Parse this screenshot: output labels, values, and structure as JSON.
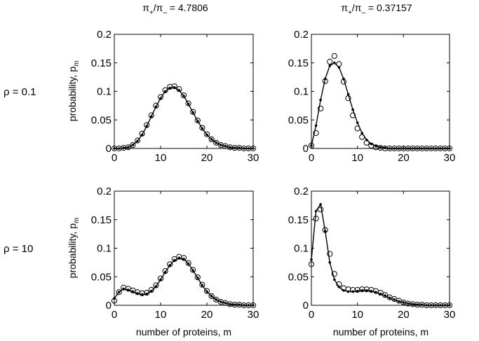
{
  "figure": {
    "column_titles": [
      {
        "main": "π",
        "sub1": "+",
        "mid": "/π",
        "sub2": "–",
        "value": " = 4.7806"
      },
      {
        "main": "π",
        "sub1": "+",
        "mid": "/π",
        "sub2": "–",
        "value": " = 0.37157"
      }
    ],
    "row_labels": [
      "ρ = 0.1",
      "ρ = 10"
    ],
    "ylabel": {
      "text": "probability, p",
      "sub": "m"
    },
    "xlabel": "number of proteins, m",
    "x_ticks": [
      "0",
      "10",
      "20",
      "30"
    ],
    "y_ticks": [
      "0",
      "0.05",
      "0.1",
      "0.15",
      "0.2"
    ]
  },
  "chart_data": [
    {
      "type": "line",
      "row_label": "ρ = 0.1",
      "column_title": "π+/π– = 4.7806",
      "xlim": [
        0,
        30
      ],
      "ylim": [
        0,
        0.2
      ],
      "x": [
        0,
        1,
        2,
        3,
        4,
        5,
        6,
        7,
        8,
        9,
        10,
        11,
        12,
        13,
        14,
        15,
        16,
        17,
        18,
        19,
        20,
        21,
        22,
        23,
        24,
        25,
        26,
        27,
        28,
        29,
        30
      ],
      "series": [
        {
          "style": "line with dots",
          "values": [
            0,
            0,
            0.001,
            0.002,
            0.006,
            0.013,
            0.024,
            0.039,
            0.056,
            0.073,
            0.088,
            0.1,
            0.106,
            0.107,
            0.102,
            0.092,
            0.078,
            0.063,
            0.048,
            0.035,
            0.024,
            0.016,
            0.01,
            0.006,
            0.004,
            0.002,
            0.001,
            0.001,
            0,
            0,
            0
          ]
        },
        {
          "style": "open circles",
          "values": [
            0,
            0,
            0.001,
            0.002,
            0.006,
            0.014,
            0.026,
            0.041,
            0.058,
            0.075,
            0.09,
            0.102,
            0.108,
            0.109,
            0.104,
            0.093,
            0.079,
            0.064,
            0.049,
            0.036,
            0.025,
            0.016,
            0.01,
            0.006,
            0.004,
            0.002,
            0.001,
            0.001,
            0,
            0,
            0
          ]
        }
      ]
    },
    {
      "type": "line",
      "row_label": "ρ = 0.1",
      "column_title": "π+/π– = 0.37157",
      "xlim": [
        0,
        30
      ],
      "ylim": [
        0,
        0.2
      ],
      "x": [
        0,
        1,
        2,
        3,
        4,
        5,
        6,
        7,
        8,
        9,
        10,
        11,
        12,
        13,
        14,
        15,
        16,
        17,
        18,
        19,
        20,
        21,
        22,
        23,
        24,
        25,
        26,
        27,
        28,
        29,
        30
      ],
      "series": [
        {
          "style": "line with dots",
          "values": [
            0.005,
            0.04,
            0.085,
            0.122,
            0.145,
            0.15,
            0.142,
            0.122,
            0.095,
            0.068,
            0.045,
            0.027,
            0.015,
            0.008,
            0.004,
            0.002,
            0.001,
            0,
            0,
            0,
            0,
            0,
            0,
            0,
            0,
            0,
            0,
            0,
            0,
            0,
            0
          ]
        },
        {
          "style": "open circles",
          "values": [
            0.005,
            0.027,
            0.07,
            0.118,
            0.152,
            0.162,
            0.148,
            0.117,
            0.088,
            0.058,
            0.035,
            0.02,
            0.01,
            0.005,
            0.002,
            0.001,
            0,
            0,
            0,
            0,
            0,
            0,
            0,
            0,
            0,
            0,
            0,
            0,
            0,
            0,
            0
          ]
        }
      ]
    },
    {
      "type": "line",
      "row_label": "ρ = 10",
      "column_title": "π+/π– = 4.7806",
      "xlim": [
        0,
        30
      ],
      "ylim": [
        0,
        0.2
      ],
      "x": [
        0,
        1,
        2,
        3,
        4,
        5,
        6,
        7,
        8,
        9,
        10,
        11,
        12,
        13,
        14,
        15,
        16,
        17,
        18,
        19,
        20,
        21,
        22,
        23,
        24,
        25,
        26,
        27,
        28,
        29,
        30
      ],
      "series": [
        {
          "style": "line with dots",
          "values": [
            0.012,
            0.023,
            0.029,
            0.027,
            0.024,
            0.021,
            0.019,
            0.02,
            0.025,
            0.033,
            0.045,
            0.058,
            0.07,
            0.079,
            0.083,
            0.081,
            0.073,
            0.061,
            0.048,
            0.035,
            0.024,
            0.016,
            0.01,
            0.006,
            0.004,
            0.002,
            0.001,
            0.001,
            0,
            0,
            0
          ]
        },
        {
          "style": "open circles",
          "values": [
            0.008,
            0.023,
            0.031,
            0.029,
            0.026,
            0.023,
            0.021,
            0.022,
            0.027,
            0.035,
            0.047,
            0.06,
            0.072,
            0.081,
            0.085,
            0.083,
            0.074,
            0.062,
            0.049,
            0.036,
            0.025,
            0.016,
            0.01,
            0.006,
            0.004,
            0.002,
            0.001,
            0.001,
            0,
            0,
            0
          ]
        }
      ]
    },
    {
      "type": "line",
      "row_label": "ρ = 10",
      "column_title": "π+/π– = 0.37157",
      "xlim": [
        0,
        30
      ],
      "ylim": [
        0,
        0.2
      ],
      "x": [
        0,
        1,
        2,
        3,
        4,
        5,
        6,
        7,
        8,
        9,
        10,
        11,
        12,
        13,
        14,
        15,
        16,
        17,
        18,
        19,
        20,
        21,
        22,
        23,
        24,
        25,
        26,
        27,
        28,
        29,
        30
      ],
      "series": [
        {
          "style": "line with dots",
          "values": [
            0.08,
            0.165,
            0.177,
            0.13,
            0.075,
            0.045,
            0.032,
            0.026,
            0.024,
            0.024,
            0.025,
            0.026,
            0.026,
            0.025,
            0.023,
            0.02,
            0.017,
            0.013,
            0.01,
            0.007,
            0.005,
            0.003,
            0.002,
            0.001,
            0.001,
            0,
            0,
            0,
            0,
            0,
            0
          ]
        },
        {
          "style": "open circles",
          "values": [
            0.072,
            0.152,
            0.168,
            0.132,
            0.09,
            0.055,
            0.037,
            0.03,
            0.028,
            0.027,
            0.027,
            0.028,
            0.028,
            0.027,
            0.025,
            0.022,
            0.018,
            0.014,
            0.011,
            0.008,
            0.005,
            0.003,
            0.002,
            0.001,
            0.001,
            0,
            0,
            0,
            0,
            0,
            0
          ]
        }
      ]
    }
  ]
}
